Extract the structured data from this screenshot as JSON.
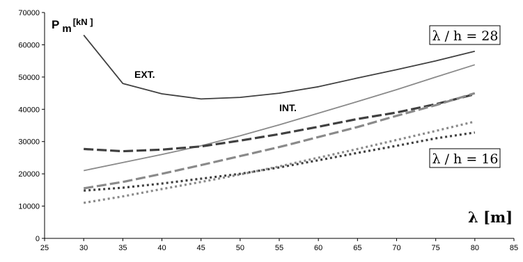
{
  "chart_data": {
    "type": "line",
    "ylabel_main": "P",
    "ylabel_sub": "m",
    "ylabel_unit": "[kN  ]",
    "xlabel": "λ [m]",
    "xlim": [
      25,
      85
    ],
    "ylim": [
      0,
      70000
    ],
    "xticks": [
      25,
      30,
      35,
      40,
      45,
      50,
      55,
      60,
      65,
      70,
      75,
      80,
      85
    ],
    "yticks": [
      0,
      10000,
      20000,
      30000,
      40000,
      50000,
      60000,
      70000
    ],
    "grid": false,
    "annotations": [
      {
        "text": "EXT."
      },
      {
        "text": "INT."
      },
      {
        "text": "λ / h = 28"
      },
      {
        "text": "λ / h = 16"
      }
    ],
    "series": [
      {
        "style": "solid",
        "color": "#404040",
        "width": 1.8,
        "x": [
          30,
          35,
          40,
          45,
          50,
          55,
          60,
          65,
          70,
          75,
          80
        ],
        "y": [
          63000,
          48000,
          44800,
          43200,
          43700,
          45000,
          47000,
          49700,
          52300,
          55000,
          58000
        ]
      },
      {
        "style": "solid",
        "color": "#8a8a8a",
        "width": 1.8,
        "x": [
          30,
          35,
          40,
          45,
          50,
          55,
          60,
          65,
          70,
          75,
          80
        ],
        "y": [
          21000,
          23500,
          26000,
          28700,
          31800,
          35200,
          38800,
          42400,
          46100,
          50000,
          53800
        ]
      },
      {
        "style": "dash",
        "color": "#404040",
        "width": 3.2,
        "x": [
          30,
          35,
          40,
          45,
          50,
          55,
          60,
          65,
          70,
          75,
          80
        ],
        "y": [
          27700,
          27000,
          27500,
          28500,
          30300,
          32300,
          34600,
          37000,
          39000,
          41600,
          44700
        ]
      },
      {
        "style": "dash",
        "color": "#8a8a8a",
        "width": 3.2,
        "x": [
          30,
          35,
          40,
          45,
          50,
          55,
          60,
          65,
          70,
          75,
          80
        ],
        "y": [
          15500,
          17500,
          20000,
          22700,
          25500,
          28300,
          31400,
          34500,
          38000,
          41300,
          45000
        ]
      },
      {
        "style": "dot",
        "color": "#404040",
        "width": 3.2,
        "x": [
          30,
          35,
          40,
          45,
          50,
          55,
          60,
          65,
          70,
          75,
          80
        ],
        "y": [
          14800,
          15700,
          17000,
          18500,
          20000,
          22000,
          24200,
          26500,
          28700,
          31000,
          32800
        ]
      },
      {
        "style": "dot",
        "color": "#8a8a8a",
        "width": 3.2,
        "x": [
          30,
          35,
          40,
          45,
          50,
          55,
          60,
          65,
          70,
          75,
          80
        ],
        "y": [
          11000,
          13000,
          15300,
          17500,
          19800,
          22300,
          25000,
          27700,
          30500,
          33300,
          36200
        ]
      }
    ]
  }
}
